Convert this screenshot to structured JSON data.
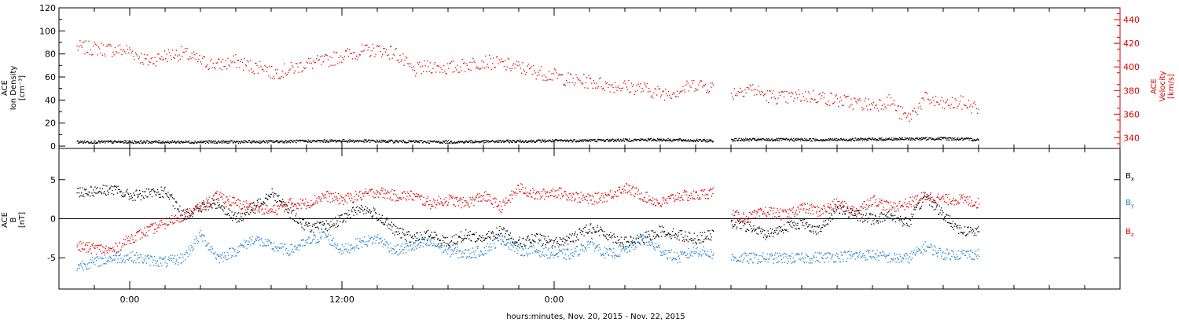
{
  "chart_data": [
    {
      "type": "scatter",
      "panel": "top",
      "ylabel_lines": [
        "ACE",
        "Ion Density",
        "[cm⁻³]"
      ],
      "ylabel2_lines": [
        "ACE",
        "Velocity",
        "[km/s]"
      ],
      "ylim": [
        -2,
        120
      ],
      "ylim_right": [
        331,
        450
      ],
      "yticks": [
        0,
        20,
        40,
        60,
        80,
        100,
        120
      ],
      "yticks_right": [
        340,
        360,
        380,
        400,
        420,
        440
      ],
      "series": [
        {
          "name": "",
          "axis": "left",
          "color": "#000000",
          "segments": [
            {
              "x": [
                -3,
                6,
                12,
                18,
                24,
                30,
                33
              ],
              "y": [
                4,
                4,
                5,
                4,
                5,
                6,
                5
              ]
            },
            {
              "x": [
                34,
                40,
                46,
                48
              ],
              "y": [
                6,
                6,
                7,
                6
              ]
            }
          ]
        },
        {
          "name": "",
          "axis": "right",
          "color": "#dd0000",
          "segments": [
            {
              "x": [
                -3,
                0,
                1,
                2,
                3,
                4,
                5,
                6,
                7,
                7.5,
                8,
                9,
                10,
                11,
                12,
                13,
                14,
                15,
                16,
                17,
                18,
                19,
                20,
                21,
                22,
                23,
                24,
                25,
                26,
                27,
                28,
                29,
                30,
                31,
                32,
                33
              ],
              "y": [
                417,
                414,
                405,
                410,
                412,
                405,
                402,
                405,
                400,
                402,
                395,
                398,
                403,
                405,
                410,
                413,
                415,
                412,
                397,
                401,
                399,
                402,
                405,
                403,
                400,
                396,
                393,
                389,
                388,
                385,
                384,
                382,
                378,
                380,
                386,
                383
              ]
            },
            {
              "x": [
                34,
                35,
                36,
                37,
                38,
                39,
                40,
                41,
                42,
                43,
                43.5,
                44,
                45,
                46,
                47,
                48
              ],
              "y": [
                378,
                383,
                376,
                374,
                376,
                375,
                372,
                370,
                368,
                372,
                362,
                357,
                374,
                368,
                370,
                365
              ]
            }
          ]
        }
      ]
    },
    {
      "type": "scatter",
      "panel": "bottom",
      "ylabel_lines": [
        "ACE",
        "B",
        "[nT]"
      ],
      "ylim": [
        -9,
        9
      ],
      "yticks": [
        -5,
        0,
        5
      ],
      "zero_line": true,
      "series": [
        {
          "name": "Bx",
          "color": "#000000",
          "segments": [
            {
              "x": [
                -3,
                -1,
                0,
                1,
                2,
                3,
                4,
                5,
                6,
                7,
                8,
                9,
                10,
                11,
                12,
                13,
                14,
                15,
                16,
                17,
                18,
                19,
                20,
                21,
                22,
                23,
                24,
                25,
                26,
                27,
                28,
                29,
                30,
                31,
                32,
                33
              ],
              "y": [
                3.5,
                3.8,
                3,
                3.2,
                3.5,
                0.5,
                1.5,
                2,
                0,
                1.5,
                3.5,
                1,
                -1,
                -1,
                0,
                1.5,
                0.5,
                -1.5,
                -2.5,
                -2,
                -3,
                -2,
                -2.5,
                -1.5,
                -3,
                -2.5,
                -3,
                -2.5,
                -1,
                -2,
                -3,
                -2.5,
                -1.5,
                -2,
                -2.5,
                -2
              ]
            },
            {
              "x": [
                34,
                35,
                36,
                37,
                38,
                39,
                40,
                41,
                42,
                43,
                44,
                45,
                46,
                47,
                48
              ],
              "y": [
                -0.5,
                -1,
                -2,
                -1,
                -0.5,
                -1.5,
                1.5,
                0.5,
                0,
                0.5,
                -0.5,
                3,
                0.5,
                -1.5,
                -1.5
              ]
            }
          ]
        },
        {
          "name": "By",
          "color": "#1f7fd0",
          "segments": [
            {
              "x": [
                -3,
                -1,
                0,
                1,
                2,
                3,
                4,
                5,
                6,
                7,
                8,
                9,
                10,
                11,
                12,
                13,
                14,
                15,
                16,
                17,
                18,
                19,
                20,
                21,
                22,
                23,
                24,
                25,
                26,
                27,
                28,
                29,
                30,
                31,
                32,
                33
              ],
              "y": [
                -6,
                -5,
                -4.8,
                -5.2,
                -5.5,
                -5,
                -2,
                -5,
                -4,
                -2.5,
                -3.5,
                -4,
                -3,
                -2,
                -4,
                -3,
                -2.5,
                -4,
                -3.5,
                -3,
                -4,
                -4.5,
                -4,
                -2.5,
                -4,
                -4,
                -4.5,
                -4.5,
                -3,
                -4.5,
                -4,
                -2.5,
                -4,
                -5,
                -4,
                -4.5
              ]
            },
            {
              "x": [
                34,
                36,
                38,
                40,
                42,
                43,
                44,
                45,
                46,
                47,
                48
              ],
              "y": [
                -5,
                -5,
                -5,
                -4.8,
                -4.5,
                -5,
                -5,
                -3.5,
                -4.5,
                -4.5,
                -4.5
              ]
            }
          ]
        },
        {
          "name": "Bz",
          "color": "#dd0000",
          "segments": [
            {
              "x": [
                -3,
                -1,
                0,
                1,
                2,
                3,
                4,
                5,
                6,
                7,
                8,
                9,
                10,
                11,
                12,
                13,
                14,
                15,
                16,
                17,
                18,
                19,
                20,
                21,
                22,
                23,
                24,
                25,
                26,
                27,
                28,
                29,
                30,
                31,
                32,
                33
              ],
              "y": [
                -3.5,
                -4,
                -2.5,
                -1.5,
                -0.5,
                0.5,
                1.5,
                3,
                2,
                1.5,
                1,
                2,
                2,
                3,
                2.5,
                3,
                3.5,
                3,
                3,
                2,
                2.5,
                2,
                3,
                1.5,
                4,
                3,
                3.5,
                3,
                2.5,
                3,
                4,
                3,
                2,
                3,
                3,
                3.5
              ]
            },
            {
              "x": [
                34,
                35,
                36,
                37,
                38,
                39,
                40,
                41,
                42,
                43,
                44,
                45,
                46,
                47,
                48
              ],
              "y": [
                0.5,
                0.2,
                1,
                0.5,
                1.5,
                1,
                2,
                1,
                2.5,
                1.5,
                2,
                3,
                2.5,
                2.5,
                2
              ]
            }
          ]
        }
      ]
    }
  ],
  "x_axis": {
    "range": [
      -4,
      56
    ],
    "major_ticks": [
      0,
      12,
      24
    ],
    "major_labels": [
      "0:00",
      "12:00",
      "0:00"
    ],
    "minor_step": 2,
    "xlabel": "hours:minutes, Nov. 20, 2015 - Nov. 22, 2015"
  },
  "legend": [
    {
      "label": "B",
      "sub": "x",
      "color": "#000000"
    },
    {
      "label": "B",
      "sub": "y",
      "color": "#1f7fd0"
    },
    {
      "label": "B",
      "sub": "z",
      "color": "#dd0000"
    }
  ],
  "colors": {
    "density": "#000000",
    "velocity": "#dd0000",
    "bx": "#000000",
    "by": "#1f7fd0",
    "bz": "#dd0000"
  }
}
